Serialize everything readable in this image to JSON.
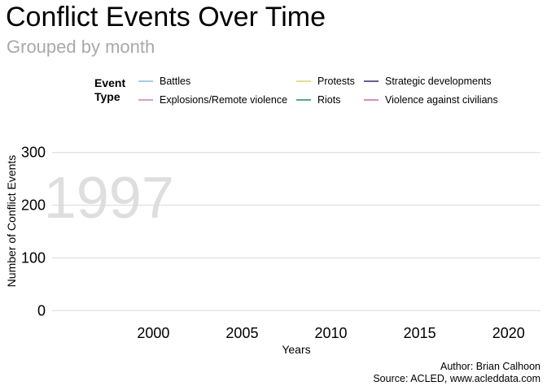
{
  "chart_data": {
    "type": "line",
    "title": "Conflict Events Over Time",
    "subtitle": "Grouped by month",
    "xlabel": "Years",
    "ylabel": "Number of Conflict Events",
    "xlim": [
      1994.3,
      2021.8
    ],
    "ylim": [
      -15,
      315
    ],
    "x_ticks": [
      "2000",
      "2005",
      "2010",
      "2015",
      "2020"
    ],
    "x_tick_values": [
      2000,
      2005,
      2010,
      2015,
      2020
    ],
    "y_ticks": [
      "0",
      "100",
      "200",
      "300"
    ],
    "y_tick_values": [
      0,
      100,
      200,
      300
    ],
    "grid": "horizontal",
    "frame_label": "1997",
    "legend": {
      "title": "Event Type",
      "placement": "top",
      "items": [
        {
          "label": "Battles",
          "color": "#a6cee3"
        },
        {
          "label": "Explosions/Remote violence",
          "color": "#d4a0c0"
        },
        {
          "label": "Protests",
          "color": "#e6e08f"
        },
        {
          "label": "Riots",
          "color": "#5aa882"
        },
        {
          "label": "Strategic developments",
          "color": "#6a5b8f"
        },
        {
          "label": "Violence against civilians",
          "color": "#d48fbf"
        }
      ]
    },
    "series": [],
    "caption": [
      "Author: Brian Calhoon",
      "Source: ACLED, www.acleddata.com"
    ]
  },
  "colors": {
    "grid": "#d9d9d9",
    "frame_label": "#dedede",
    "subtitle": "#a9a9a9"
  }
}
